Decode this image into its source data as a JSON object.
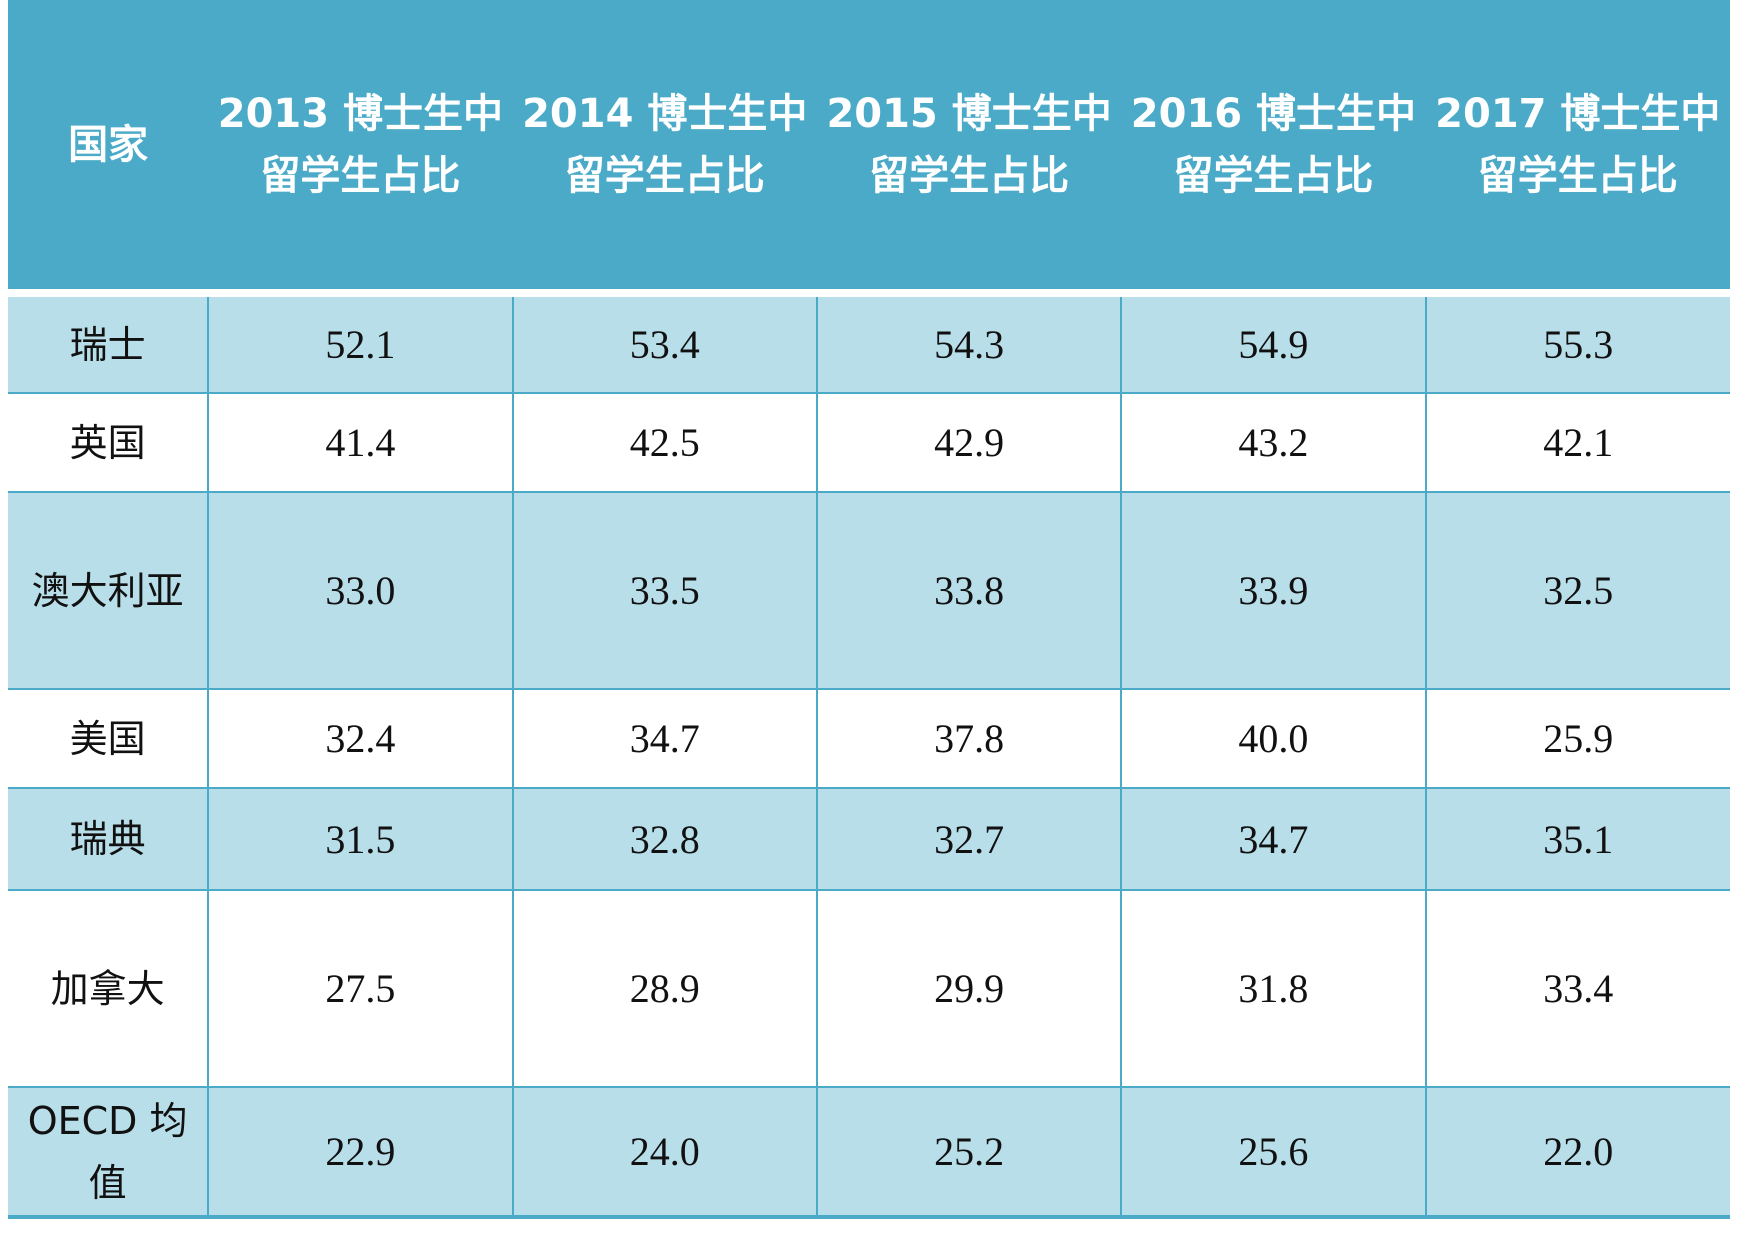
{
  "chart_data": {
    "type": "table",
    "columns": [
      "国家",
      "2013 博士生中留学生占比",
      "2014 博士生中留学生占比",
      "2015 博士生中留学生占比",
      "2016 博士生中留学生占比",
      "2017 博士生中留学生占比"
    ],
    "rows": [
      {
        "country": "瑞士",
        "values": [
          "52.1",
          "53.4",
          "54.3",
          "54.9",
          "55.3"
        ]
      },
      {
        "country": "英国",
        "values": [
          "41.4",
          "42.5",
          "42.9",
          "43.2",
          "42.1"
        ]
      },
      {
        "country": "澳大利亚",
        "values": [
          "33.0",
          "33.5",
          "33.8",
          "33.9",
          "32.5"
        ]
      },
      {
        "country": "美国",
        "values": [
          "32.4",
          "34.7",
          "37.8",
          "40.0",
          "25.9"
        ]
      },
      {
        "country": "瑞典",
        "values": [
          "31.5",
          "32.8",
          "32.7",
          "34.7",
          "35.1"
        ]
      },
      {
        "country": "加拿大",
        "values": [
          "27.5",
          "28.9",
          "29.9",
          "31.8",
          "33.4"
        ]
      },
      {
        "country": "OECD 均值",
        "values": [
          "22.9",
          "24.0",
          "25.2",
          "25.6",
          "22.0"
        ]
      }
    ]
  },
  "colors": {
    "header_bg": "#4aaac8",
    "band_bg": "#b8dee9",
    "plain_bg": "#ffffff",
    "border": "#4aaac8"
  }
}
